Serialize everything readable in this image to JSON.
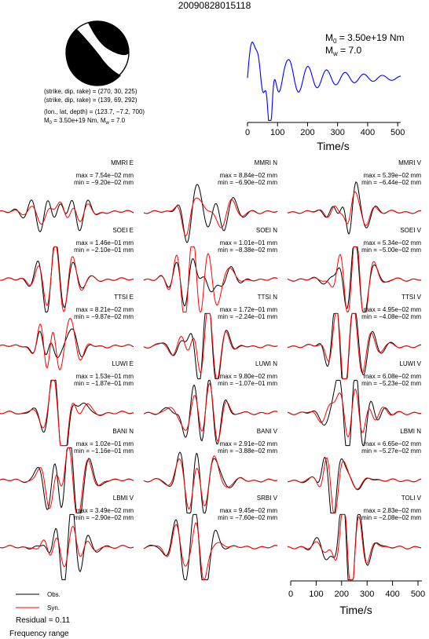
{
  "title": "20090828015118",
  "focal": {
    "plane1": "(strike, dip, rake) = (270, 30, 225)",
    "plane2": "(strike, dip, rake) = (139, 69, 292)",
    "location": "(lon., lat, depth) = (123.7, −7.2, 700)",
    "moment": "M",
    "moment_sub": "0",
    "moment_rest": " = 3.50e+19 Nm, M",
    "mw_sub": "w",
    "mw_rest": " = 7.0"
  },
  "stf": {
    "m0_main": "M",
    "m0_sub": "0",
    "m0_value": " = 3.50e+19 Nm",
    "mw_main": "M",
    "mw_sub": "w",
    "mw_value": " = 7.0",
    "xlabel": "Time/s",
    "xticks": [
      0,
      100,
      200,
      300,
      400,
      500
    ],
    "color": "#0000ff"
  },
  "time_axis": {
    "xlabel": "Time/s",
    "xticks": [
      0,
      100,
      200,
      300,
      400,
      500
    ]
  },
  "legend": {
    "obs": "Obs.",
    "syn": "Syn.",
    "obs_color": "#000000",
    "syn_color": "#ff0000"
  },
  "residual": "Residual = 0.11",
  "frequency_label": "Frequency range",
  "chart_data": {
    "type": "line",
    "traces": [
      {
        "station": "MMRI E",
        "max": "max = 7.54e−02 mm",
        "min": "min = −9.20e−02 mm",
        "seed": 1
      },
      {
        "station": "MMRI N",
        "max": "max = 8.84e−02 mm",
        "min": "min = −6.90e−02 mm",
        "seed": 2
      },
      {
        "station": "MMRI V",
        "max": "max = 5.39e−02 mm",
        "min": "min = −6.44e−02 mm",
        "seed": 3
      },
      {
        "station": "SOEI E",
        "max": "max = 1.46e−01 mm",
        "min": "min = −2.10e−01 mm",
        "seed": 4
      },
      {
        "station": "SOEI N",
        "max": "max = 1.01e−01 mm",
        "min": "min = −8.38e−02 mm",
        "seed": 5
      },
      {
        "station": "SOEI V",
        "max": "max = 5.34e−02 mm",
        "min": "min = −5.00e−02 mm",
        "seed": 6
      },
      {
        "station": "TTSI E",
        "max": "max = 8.21e−02 mm",
        "min": "min = −9.87e−02 mm",
        "seed": 7
      },
      {
        "station": "TTSI N",
        "max": "max = 1.72e−01 mm",
        "min": "min = −2.24e−01 mm",
        "seed": 8
      },
      {
        "station": "TTSI V",
        "max": "max = 4.95e−02 mm",
        "min": "min = −4.08e−02 mm",
        "seed": 9
      },
      {
        "station": "LUWI E",
        "max": "max = 1.53e−01 mm",
        "min": "min = −1.87e−01 mm",
        "seed": 10
      },
      {
        "station": "LUWI N",
        "max": "max = 9.80e−02 mm",
        "min": "min = −1.07e−01 mm",
        "seed": 11
      },
      {
        "station": "LUWI V",
        "max": "max = 6.08e−02 mm",
        "min": "min = −5.23e−02 mm",
        "seed": 12
      },
      {
        "station": "BANI N",
        "max": "max = 1.02e−01 mm",
        "min": "min = −1.16e−01 mm",
        "seed": 13
      },
      {
        "station": "BANI V",
        "max": "max = 2.91e−02 mm",
        "min": "min = −3.88e−02 mm",
        "seed": 14
      },
      {
        "station": "LBMI N",
        "max": "max = 6.65e−02 mm",
        "min": "min = −5.27e−02 mm",
        "seed": 15
      },
      {
        "station": "LBMI V",
        "max": "max = 3.49e−02 mm",
        "min": "min = −2.90e−02 mm",
        "seed": 16
      },
      {
        "station": "SRBI V",
        "max": "max = 9.45e−02 mm",
        "min": "min = −7.60e−02 mm",
        "seed": 17
      },
      {
        "station": "TOLI V",
        "max": "max = 2.83e−02 mm",
        "min": "min = −2.08e−02 mm",
        "seed": 18
      }
    ]
  }
}
